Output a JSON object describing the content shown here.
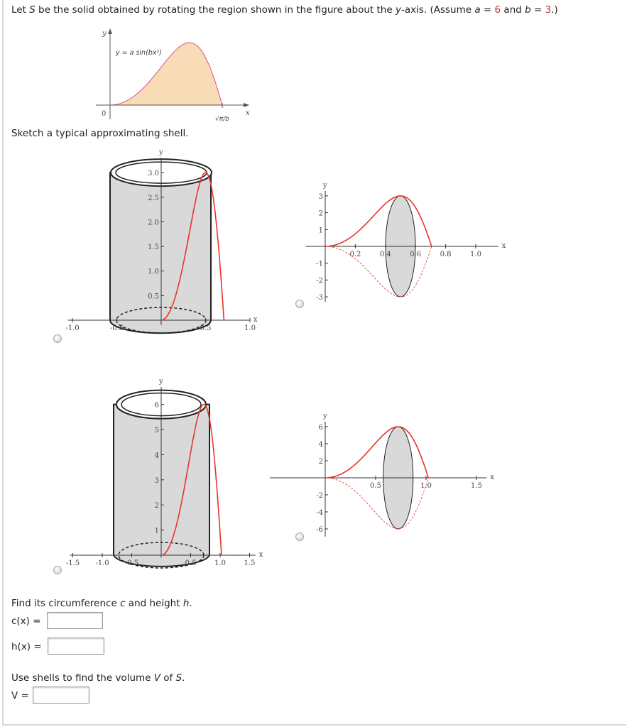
{
  "question": {
    "intro_1": "Let ",
    "S": "S",
    "intro_2": " be the solid obtained by rotating the region shown in the figure about the ",
    "y_axis": "y",
    "intro_3": "-axis. (Assume ",
    "a_label": "a",
    "a_value": "6",
    "and": " and ",
    "b_label": "b",
    "b_value": "3",
    "close": ".)",
    "eq": " = "
  },
  "region_figure": {
    "curve_label": "y = a sin(bx²)",
    "origin": "0",
    "x_end_label": "√π/b",
    "x_axis": "x",
    "y_axis": "y",
    "fill_color": "#f8dcb8",
    "curve_color": "#e0508a"
  },
  "sketch_prompt": "Sketch a typical approximating shell.",
  "options": [
    {
      "x_axis": "x",
      "y_axis": "y",
      "x_ticks": [
        "-1.0",
        "-0.5",
        "0.5",
        "1.0"
      ],
      "y_ticks": [
        "0.5",
        "1.0",
        "1.5",
        "2.0",
        "2.5",
        "3.0"
      ],
      "selected": false
    },
    {
      "x_axis": "x",
      "y_axis": "y",
      "x_ticks": [
        "0.2",
        "0.4",
        "0.6",
        "0.8",
        "1.0"
      ],
      "y_ticks": [
        "3",
        "2",
        "1",
        "-1",
        "-2",
        "-3"
      ],
      "selected": false
    },
    {
      "x_axis": "x",
      "y_axis": "y",
      "x_ticks": [
        "-1.5",
        "-1.0",
        "-0.5",
        "0.5",
        "1.0",
        "1.5"
      ],
      "y_ticks": [
        "1",
        "2",
        "3",
        "4",
        "5",
        "6"
      ],
      "selected": false
    },
    {
      "x_axis": "x",
      "y_axis": "y",
      "x_ticks": [
        "0.5",
        "1.0",
        "1.5"
      ],
      "y_ticks": [
        "6",
        "4",
        "2",
        "-2",
        "-4",
        "-6"
      ],
      "selected": false
    }
  ],
  "curve_color": "#e8352a",
  "shell_fill": "#d9d9d9",
  "find": {
    "prompt_1": "Find its circumference ",
    "c": "c",
    "prompt_2": " and height ",
    "h": "h",
    "prompt_3": ".",
    "c_label": "c(x) =",
    "c_value": "",
    "h_label": "h(x) =",
    "h_value": ""
  },
  "volume": {
    "prompt_1": "Use shells to find the volume ",
    "V": "V",
    "prompt_2": " of ",
    "S": "S",
    "prompt_3": ".",
    "v_label": "V =",
    "v_value": ""
  }
}
